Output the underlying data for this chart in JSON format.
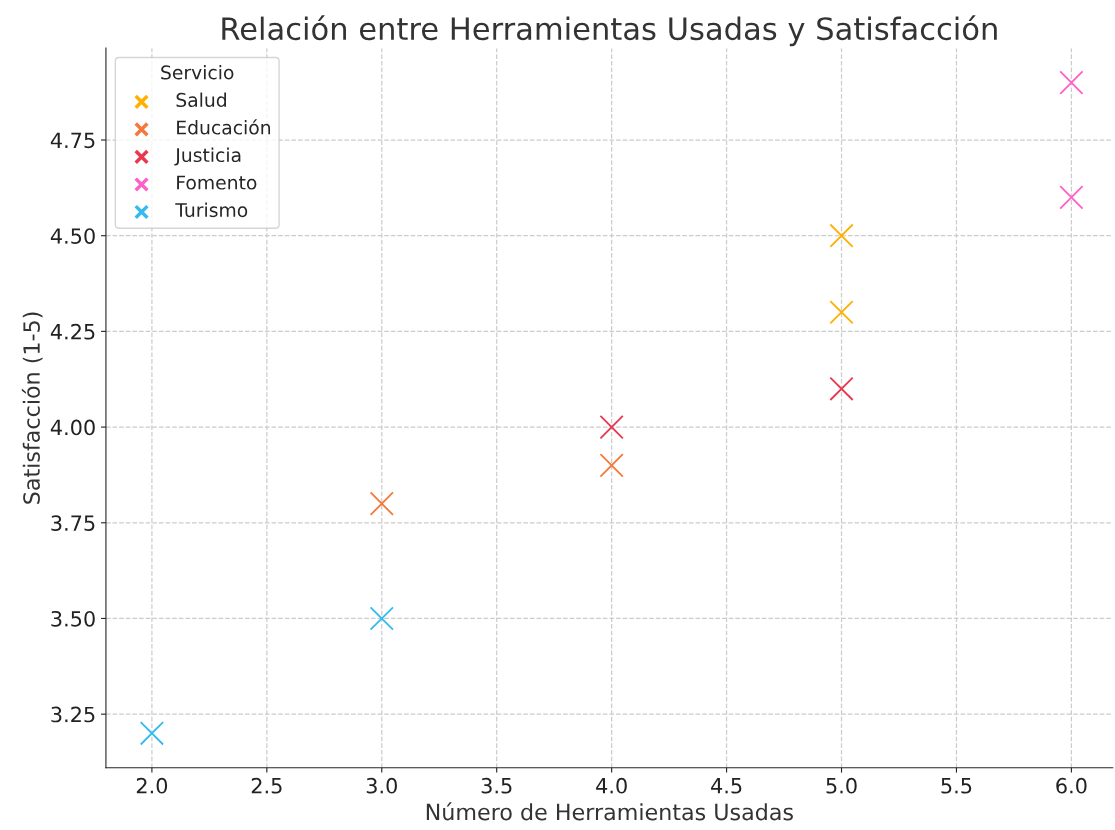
{
  "chart_data": {
    "type": "scatter",
    "title": "Relación entre Herramientas Usadas y Satisfacción",
    "xlabel": "Número de Herramientas Usadas",
    "ylabel": "Satisfacción (1-5)",
    "legend_title": "Servicio",
    "series": [
      {
        "name": "Salud",
        "color": "#ffb000",
        "x": [
          5,
          5
        ],
        "values": [
          4.5,
          4.3
        ]
      },
      {
        "name": "Educación",
        "color": "#f5793a",
        "x": [
          3,
          4
        ],
        "values": [
          3.8,
          3.9
        ]
      },
      {
        "name": "Justicia",
        "color": "#e8384f",
        "x": [
          4,
          5
        ],
        "values": [
          4.0,
          4.1
        ]
      },
      {
        "name": "Fomento",
        "color": "#ff5fc8",
        "x": [
          6,
          6
        ],
        "values": [
          4.9,
          4.6
        ]
      },
      {
        "name": "Turismo",
        "color": "#33bbee",
        "x": [
          2,
          3
        ],
        "values": [
          3.2,
          3.5
        ]
      }
    ],
    "xlim": [
      1.8,
      6.18
    ],
    "ylim": [
      3.11,
      4.99
    ],
    "xticks": [
      {
        "value": 2,
        "label": "2.0"
      },
      {
        "value": 2.5,
        "label": "2.5"
      },
      {
        "value": 3,
        "label": "3.0"
      },
      {
        "value": 3.5,
        "label": "3.5"
      },
      {
        "value": 4,
        "label": "4.0"
      },
      {
        "value": 4.5,
        "label": "4.5"
      },
      {
        "value": 5,
        "label": "5.0"
      },
      {
        "value": 5.5,
        "label": "5.5"
      },
      {
        "value": 6,
        "label": "6.0"
      }
    ],
    "yticks": [
      3.25,
      {
        "value": 3.5,
        "label": "3.50"
      },
      3.75,
      {
        "value": 4,
        "label": "4.00"
      },
      4.25,
      {
        "value": 4.5,
        "label": "4.50"
      },
      4.75
    ],
    "grid": true,
    "legend": "top left",
    "marker": "cross"
  }
}
